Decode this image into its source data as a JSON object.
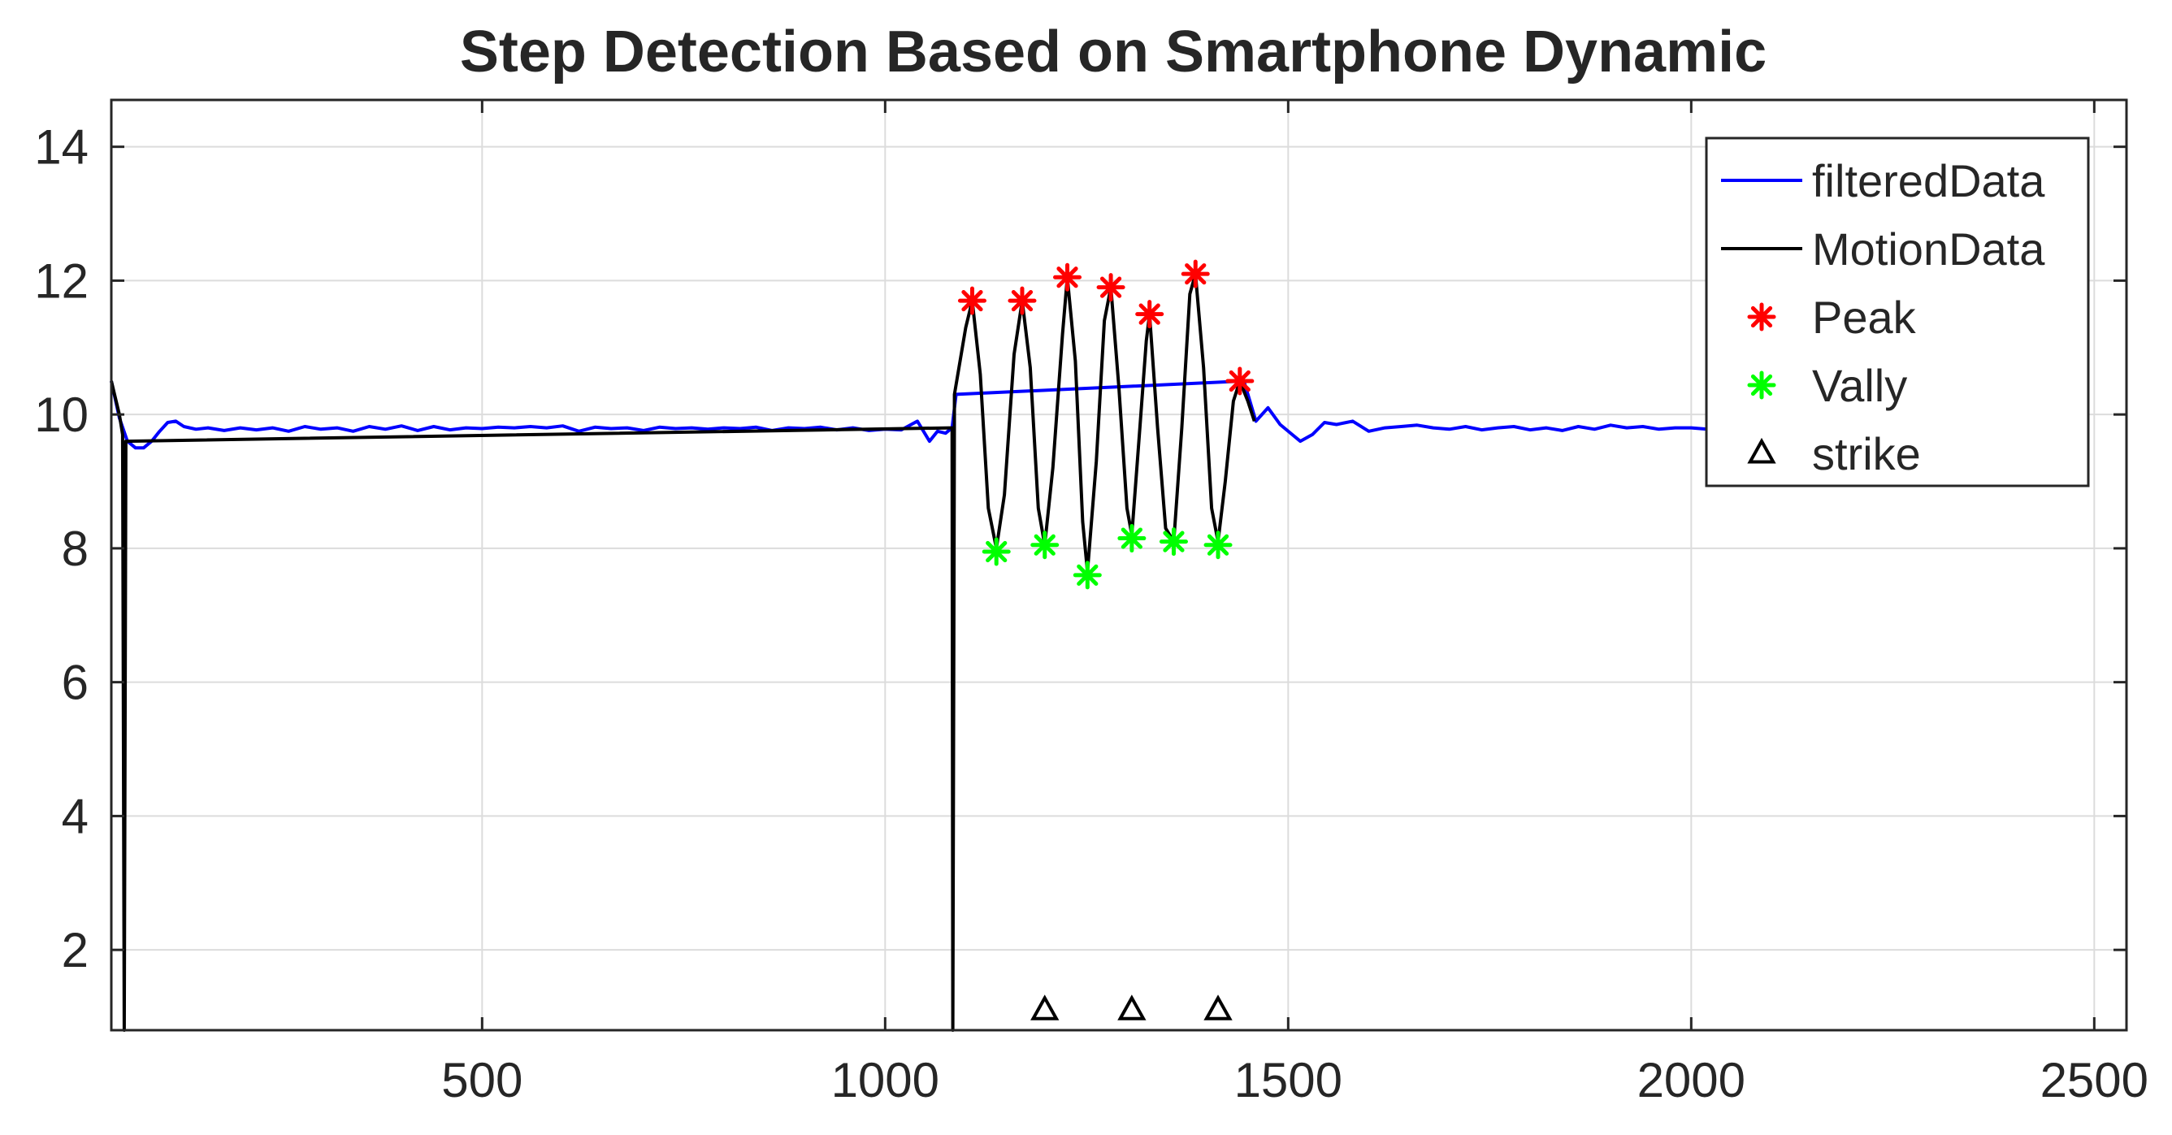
{
  "chart_data": {
    "type": "line",
    "title": "Step Detection Based on Smartphone Dynamic",
    "xlabel": "",
    "ylabel": "",
    "xlim": [
      40,
      2540
    ],
    "ylim": [
      0.8,
      14.7
    ],
    "xticks": [
      500,
      1000,
      1500,
      2000,
      2500
    ],
    "yticks": [
      2,
      4,
      6,
      8,
      10,
      12,
      14
    ],
    "grid": true,
    "legend_position": "top-right",
    "colors": {
      "filteredData": "#0000ff",
      "MotionData": "#000000",
      "Peak": "#ff0000",
      "Vally": "#00ff00",
      "strike": "#000000"
    },
    "series": [
      {
        "name": "filteredData",
        "style": "line",
        "points": [
          [
            40,
            10.5
          ],
          [
            50,
            9.95
          ],
          [
            60,
            9.6
          ],
          [
            70,
            9.5
          ],
          [
            80,
            9.5
          ],
          [
            90,
            9.6
          ],
          [
            100,
            9.75
          ],
          [
            110,
            9.88
          ],
          [
            120,
            9.9
          ],
          [
            130,
            9.82
          ],
          [
            145,
            9.78
          ],
          [
            160,
            9.8
          ],
          [
            180,
            9.76
          ],
          [
            200,
            9.8
          ],
          [
            220,
            9.77
          ],
          [
            240,
            9.8
          ],
          [
            260,
            9.75
          ],
          [
            280,
            9.82
          ],
          [
            300,
            9.78
          ],
          [
            320,
            9.8
          ],
          [
            340,
            9.75
          ],
          [
            360,
            9.82
          ],
          [
            380,
            9.78
          ],
          [
            400,
            9.83
          ],
          [
            420,
            9.76
          ],
          [
            440,
            9.82
          ],
          [
            460,
            9.77
          ],
          [
            480,
            9.8
          ],
          [
            500,
            9.79
          ],
          [
            520,
            9.81
          ],
          [
            540,
            9.8
          ],
          [
            560,
            9.82
          ],
          [
            580,
            9.8
          ],
          [
            600,
            9.83
          ],
          [
            620,
            9.75
          ],
          [
            640,
            9.81
          ],
          [
            660,
            9.79
          ],
          [
            680,
            9.8
          ],
          [
            700,
            9.76
          ],
          [
            720,
            9.81
          ],
          [
            740,
            9.79
          ],
          [
            760,
            9.8
          ],
          [
            780,
            9.78
          ],
          [
            800,
            9.8
          ],
          [
            820,
            9.79
          ],
          [
            840,
            9.81
          ],
          [
            860,
            9.76
          ],
          [
            880,
            9.8
          ],
          [
            900,
            9.79
          ],
          [
            920,
            9.81
          ],
          [
            940,
            9.77
          ],
          [
            960,
            9.8
          ],
          [
            980,
            9.76
          ],
          [
            1000,
            9.78
          ],
          [
            1020,
            9.77
          ],
          [
            1040,
            9.9
          ],
          [
            1055,
            9.6
          ],
          [
            1065,
            9.75
          ],
          [
            1075,
            9.72
          ],
          [
            1083,
            9.8
          ],
          [
            1088,
            10.3
          ],
          [
            1445,
            10.5
          ],
          [
            1460,
            9.9
          ],
          [
            1475,
            10.1
          ],
          [
            1490,
            9.85
          ],
          [
            1505,
            9.7
          ],
          [
            1515,
            9.6
          ],
          [
            1530,
            9.7
          ],
          [
            1545,
            9.88
          ],
          [
            1560,
            9.85
          ],
          [
            1580,
            9.9
          ],
          [
            1600,
            9.75
          ],
          [
            1620,
            9.8
          ],
          [
            1640,
            9.82
          ],
          [
            1660,
            9.84
          ],
          [
            1680,
            9.8
          ],
          [
            1700,
            9.78
          ],
          [
            1720,
            9.82
          ],
          [
            1740,
            9.77
          ],
          [
            1760,
            9.8
          ],
          [
            1780,
            9.82
          ],
          [
            1800,
            9.77
          ],
          [
            1820,
            9.8
          ],
          [
            1840,
            9.76
          ],
          [
            1860,
            9.82
          ],
          [
            1880,
            9.78
          ],
          [
            1900,
            9.84
          ],
          [
            1920,
            9.8
          ],
          [
            1940,
            9.82
          ],
          [
            1960,
            9.78
          ],
          [
            1980,
            9.8
          ],
          [
            2000,
            9.8
          ],
          [
            2020,
            9.78
          ],
          [
            2040,
            9.8
          ],
          [
            2070,
            9.79
          ]
        ]
      },
      {
        "name": "MotionData",
        "style": "line",
        "points": [
          [
            40,
            10.5
          ],
          [
            50,
            10.0
          ],
          [
            54,
            9.7
          ],
          [
            56,
            0.8
          ],
          [
            58,
            9.6
          ],
          [
            1083,
            9.8
          ],
          [
            1084,
            0.8
          ],
          [
            1086,
            10.3
          ],
          [
            1100,
            11.3
          ],
          [
            1108,
            11.7
          ],
          [
            1118,
            10.6
          ],
          [
            1128,
            8.6
          ],
          [
            1138,
            8.0
          ],
          [
            1148,
            8.8
          ],
          [
            1160,
            10.9
          ],
          [
            1170,
            11.7
          ],
          [
            1180,
            10.7
          ],
          [
            1190,
            8.6
          ],
          [
            1198,
            8.05
          ],
          [
            1208,
            9.2
          ],
          [
            1220,
            11.2
          ],
          [
            1226,
            12.05
          ],
          [
            1236,
            10.8
          ],
          [
            1245,
            8.4
          ],
          [
            1251,
            7.65
          ],
          [
            1262,
            9.3
          ],
          [
            1272,
            11.4
          ],
          [
            1280,
            11.9
          ],
          [
            1290,
            10.4
          ],
          [
            1300,
            8.6
          ],
          [
            1306,
            8.2
          ],
          [
            1316,
            9.8
          ],
          [
            1324,
            11.1
          ],
          [
            1328,
            11.5
          ],
          [
            1338,
            9.8
          ],
          [
            1348,
            8.3
          ],
          [
            1358,
            8.1
          ],
          [
            1368,
            9.8
          ],
          [
            1378,
            11.8
          ],
          [
            1385,
            12.1
          ],
          [
            1395,
            10.7
          ],
          [
            1405,
            8.6
          ],
          [
            1413,
            8.1
          ],
          [
            1422,
            9.0
          ],
          [
            1432,
            10.2
          ],
          [
            1440,
            10.5
          ],
          [
            1450,
            10.2
          ],
          [
            1458,
            9.9
          ]
        ]
      },
      {
        "name": "Peak",
        "style": "marker-star",
        "points": [
          [
            1108,
            11.7
          ],
          [
            1170,
            11.7
          ],
          [
            1226,
            12.05
          ],
          [
            1280,
            11.9
          ],
          [
            1328,
            11.5
          ],
          [
            1385,
            12.1
          ],
          [
            1440,
            10.5
          ]
        ]
      },
      {
        "name": "Vally",
        "style": "marker-star",
        "points": [
          [
            1138,
            7.95
          ],
          [
            1198,
            8.05
          ],
          [
            1251,
            7.6
          ],
          [
            1306,
            8.15
          ],
          [
            1358,
            8.1
          ],
          [
            1413,
            8.05
          ]
        ]
      },
      {
        "name": "strike",
        "style": "marker-triangle",
        "points": [
          [
            1198,
            1.1
          ],
          [
            1306,
            1.1
          ],
          [
            1413,
            1.1
          ]
        ]
      }
    ]
  }
}
